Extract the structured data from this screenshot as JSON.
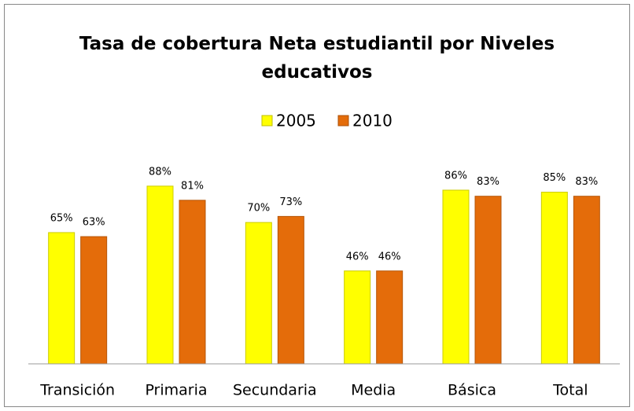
{
  "chart_data": {
    "type": "bar",
    "title": "Tasa de cobertura Neta estudiantil por Niveles educativos",
    "categories": [
      "Transición",
      "Primaria",
      "Secundaria",
      "Media",
      "Básica",
      "Total"
    ],
    "series": [
      {
        "name": "2005",
        "color": "#ffff00",
        "values": [
          65,
          88,
          70,
          46,
          86,
          85
        ],
        "value_labels": [
          "65%",
          "88%",
          "70%",
          "46%",
          "86%",
          "85%"
        ]
      },
      {
        "name": "2010",
        "color": "#e46c0a",
        "values": [
          63,
          81,
          73,
          46,
          83,
          83
        ],
        "value_labels": [
          "63%",
          "81%",
          "73%",
          "46%",
          "83%",
          "83%"
        ]
      }
    ],
    "ylim": [
      0,
      100
    ],
    "legend": "top"
  }
}
